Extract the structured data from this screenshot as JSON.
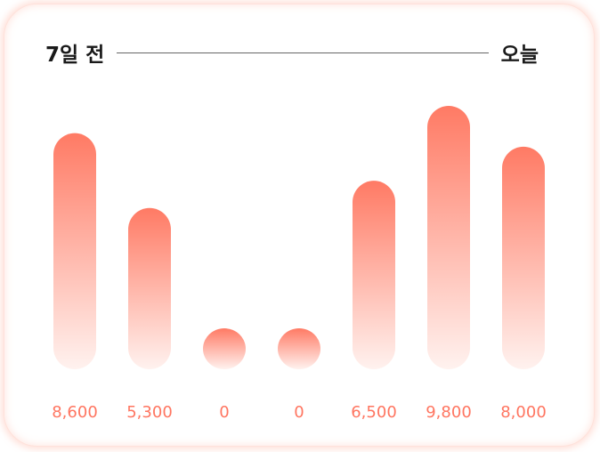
{
  "header": {
    "start_label": "7일 전",
    "end_label": "오늘"
  },
  "colors": {
    "bar_top": "#ff7a64",
    "bar_bottom": "#fff2ef",
    "label": "#ff7560"
  },
  "chart_data": {
    "type": "bar",
    "categories": [
      "7일 전",
      "",
      "",
      "",
      "",
      "",
      "오늘"
    ],
    "values": [
      8600,
      5300,
      0,
      0,
      6500,
      9800,
      8000
    ],
    "value_labels": [
      "8,600",
      "5,300",
      "0",
      "0",
      "6,500",
      "9,800",
      "8,000"
    ],
    "ylim": [
      0,
      9800
    ],
    "grid": false,
    "legend": "none"
  }
}
